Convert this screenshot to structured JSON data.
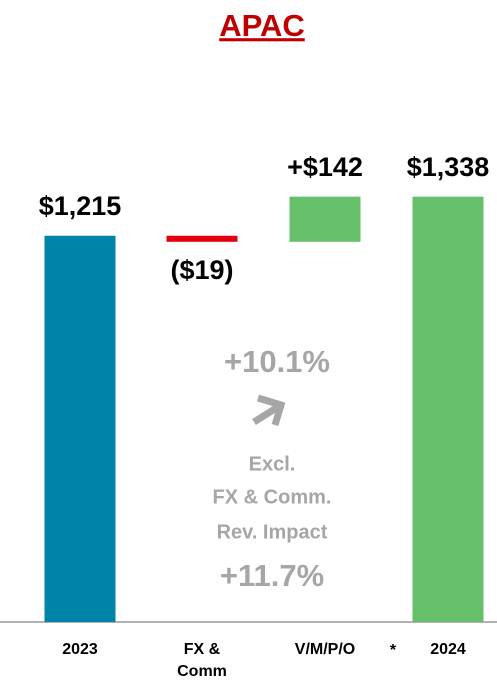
{
  "chart_data": {
    "type": "waterfall",
    "title": "APAC",
    "categories": [
      "2023",
      "FX & Comm",
      "V/M/P/O",
      "2024"
    ],
    "values": [
      1215,
      -19,
      142,
      1338
    ],
    "value_labels": [
      "$1,215",
      "($19)",
      "+$142",
      "$1,338"
    ],
    "colors": [
      "#0083a9",
      "#e3000f",
      "#66c06a",
      "#66c06a"
    ],
    "ylim": [
      0,
      1900
    ],
    "annotations": [
      "+10.1%",
      "Excl.",
      "FX & Comm.",
      "Rev. Impact",
      "+11.7%",
      "*"
    ]
  }
}
